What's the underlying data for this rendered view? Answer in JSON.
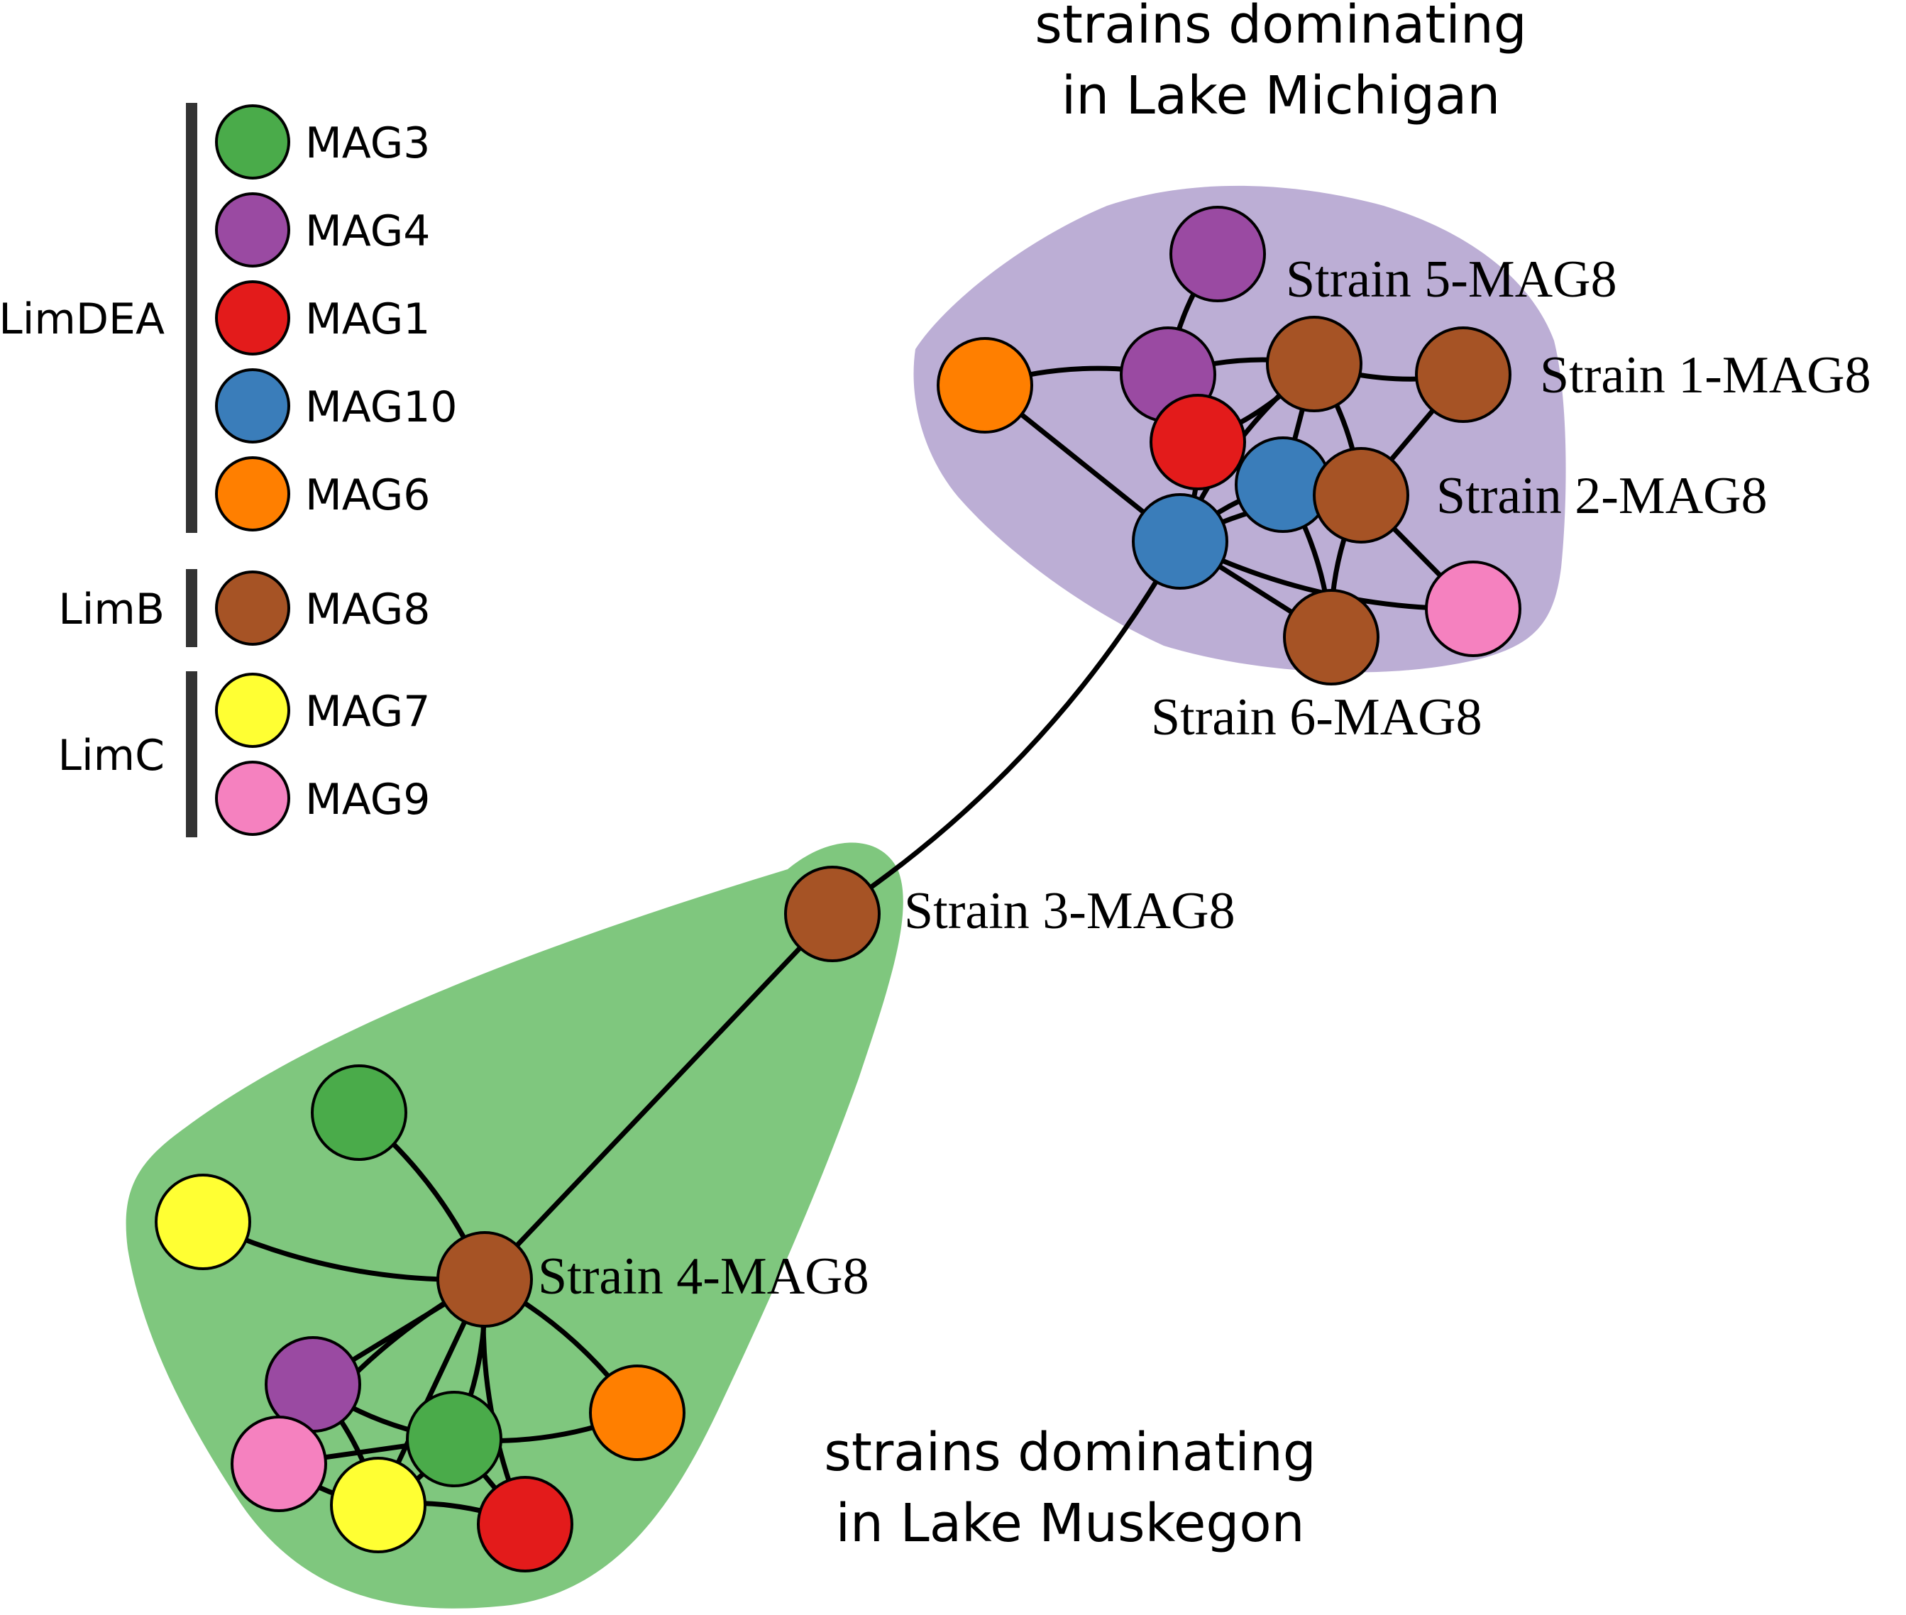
{
  "colors": {
    "MAG3": "#4aab4a",
    "MAG4": "#9a4aa2",
    "MAG1": "#e31b1b",
    "MAG10": "#3a7dba",
    "MAG6": "#ff7f00",
    "MAG8": "#a65325",
    "MAG7": "#ffff33",
    "MAG9": "#f581bf",
    "michigan_hull": "#bcaed5",
    "muskegon_hull": "#7fc77e",
    "edge": "#000000",
    "legend_bar": "#333333"
  },
  "legend": {
    "groups": [
      {
        "label": "LimDEA",
        "items": [
          "MAG3",
          "MAG4",
          "MAG1",
          "MAG10",
          "MAG6"
        ]
      },
      {
        "label": "LimB",
        "items": [
          "MAG8"
        ]
      },
      {
        "label": "LimC",
        "items": [
          "MAG7",
          "MAG9"
        ]
      }
    ]
  },
  "clusters": {
    "michigan": {
      "caption_line1": "strains dominating",
      "caption_line2": "in Lake Michigan"
    },
    "muskegon": {
      "caption_line1": "strains dominating",
      "caption_line2": "in Lake Muskegon"
    }
  },
  "nodes": [
    {
      "id": "m_orange",
      "mag": "MAG6",
      "cluster": "michigan"
    },
    {
      "id": "m_purple_top",
      "mag": "MAG4",
      "cluster": "michigan"
    },
    {
      "id": "m_purple_mid",
      "mag": "MAG4",
      "cluster": "michigan"
    },
    {
      "id": "strain5",
      "mag": "MAG8",
      "cluster": "michigan",
      "label": "Strain 5-MAG8"
    },
    {
      "id": "strain1",
      "mag": "MAG8",
      "cluster": "michigan",
      "label": "Strain 1-MAG8"
    },
    {
      "id": "m_red",
      "mag": "MAG1",
      "cluster": "michigan"
    },
    {
      "id": "m_blue_a",
      "mag": "MAG10",
      "cluster": "michigan"
    },
    {
      "id": "strain2",
      "mag": "MAG8",
      "cluster": "michigan",
      "label": "Strain 2-MAG8"
    },
    {
      "id": "m_blue_b",
      "mag": "MAG10",
      "cluster": "michigan"
    },
    {
      "id": "m_pink",
      "mag": "MAG9",
      "cluster": "michigan"
    },
    {
      "id": "strain6",
      "mag": "MAG8",
      "cluster": "michigan",
      "label": "Strain 6-MAG8"
    },
    {
      "id": "strain3",
      "mag": "MAG8",
      "cluster": "muskegon",
      "label": "Strain 3-MAG8"
    },
    {
      "id": "strain4",
      "mag": "MAG8",
      "cluster": "muskegon",
      "label": "Strain 4-MAG8"
    },
    {
      "id": "k_green_top",
      "mag": "MAG3",
      "cluster": "muskegon"
    },
    {
      "id": "k_yellow_left",
      "mag": "MAG7",
      "cluster": "muskegon"
    },
    {
      "id": "k_purple",
      "mag": "MAG4",
      "cluster": "muskegon"
    },
    {
      "id": "k_pink",
      "mag": "MAG9",
      "cluster": "muskegon"
    },
    {
      "id": "k_green_bot",
      "mag": "MAG3",
      "cluster": "muskegon"
    },
    {
      "id": "k_yellow_bot",
      "mag": "MAG7",
      "cluster": "muskegon"
    },
    {
      "id": "k_red",
      "mag": "MAG1",
      "cluster": "muskegon"
    },
    {
      "id": "k_orange",
      "mag": "MAG6",
      "cluster": "muskegon"
    }
  ],
  "edges": [
    [
      "m_orange",
      "m_purple_mid"
    ],
    [
      "m_orange",
      "m_blue_b"
    ],
    [
      "m_purple_top",
      "m_purple_mid"
    ],
    [
      "m_purple_mid",
      "strain5"
    ],
    [
      "m_purple_mid",
      "m_red"
    ],
    [
      "strain5",
      "strain1"
    ],
    [
      "strain5",
      "m_red"
    ],
    [
      "strain5",
      "m_blue_a"
    ],
    [
      "strain5",
      "m_blue_b"
    ],
    [
      "strain5",
      "strain2"
    ],
    [
      "strain1",
      "strain2"
    ],
    [
      "m_red",
      "m_blue_a"
    ],
    [
      "m_red",
      "m_blue_b"
    ],
    [
      "m_blue_a",
      "strain2"
    ],
    [
      "m_blue_a",
      "m_blue_b"
    ],
    [
      "m_blue_a",
      "strain6"
    ],
    [
      "strain2",
      "m_pink"
    ],
    [
      "strain2",
      "strain6"
    ],
    [
      "m_blue_b",
      "strain2"
    ],
    [
      "m_blue_b",
      "strain6"
    ],
    [
      "m_blue_b",
      "m_pink"
    ],
    [
      "m_blue_b",
      "strain3"
    ],
    [
      "strain3",
      "strain4"
    ],
    [
      "strain4",
      "k_green_top"
    ],
    [
      "strain4",
      "k_yellow_left"
    ],
    [
      "strain4",
      "k_purple"
    ],
    [
      "strain4",
      "k_pink"
    ],
    [
      "strain4",
      "k_green_bot"
    ],
    [
      "strain4",
      "k_yellow_bot"
    ],
    [
      "strain4",
      "k_red"
    ],
    [
      "strain4",
      "k_orange"
    ],
    [
      "k_purple",
      "k_pink"
    ],
    [
      "k_purple",
      "k_green_bot"
    ],
    [
      "k_purple",
      "k_yellow_bot"
    ],
    [
      "k_pink",
      "k_green_bot"
    ],
    [
      "k_pink",
      "k_yellow_bot"
    ],
    [
      "k_green_bot",
      "k_yellow_bot"
    ],
    [
      "k_green_bot",
      "k_red"
    ],
    [
      "k_green_bot",
      "k_orange"
    ],
    [
      "k_yellow_bot",
      "k_red"
    ]
  ]
}
